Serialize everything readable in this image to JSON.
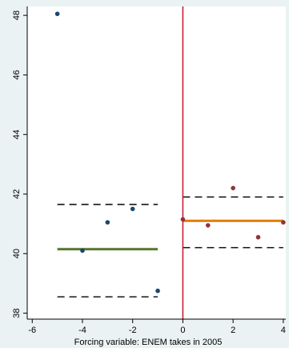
{
  "chart_data": {
    "type": "scatter",
    "title": "",
    "xlabel": "Forcing variable: ENEM takes in 2005",
    "ylabel": "",
    "xlim": [
      -6.2,
      4.1
    ],
    "ylim": [
      37.8,
      48.3
    ],
    "x_ticks": [
      -6,
      -4,
      -2,
      0,
      2,
      4
    ],
    "y_ticks": [
      38,
      40,
      42,
      44,
      46,
      48
    ],
    "grid": false,
    "legend": "none",
    "series": [
      {
        "color": "#1a476f",
        "points": [
          {
            "x": -5,
            "y": 48.05
          },
          {
            "x": -4,
            "y": 40.1
          },
          {
            "x": -3,
            "y": 41.05
          },
          {
            "x": -2,
            "y": 41.5
          },
          {
            "x": -1,
            "y": 38.75
          }
        ]
      },
      {
        "color": "#90353b",
        "points": [
          {
            "x": 0,
            "y": 41.15
          },
          {
            "x": 1,
            "y": 40.95
          },
          {
            "x": 2,
            "y": 42.2
          },
          {
            "x": 3,
            "y": 40.55
          },
          {
            "x": 4,
            "y": 41.05
          }
        ]
      }
    ],
    "fit_lines": [
      {
        "x_start": -5,
        "x_end": -1,
        "y": 40.15,
        "color": "#55752f"
      },
      {
        "x_start": 0,
        "x_end": 4,
        "y": 41.1,
        "color": "#e37e00"
      }
    ],
    "ci_lines": [
      {
        "x_start": -5,
        "x_end": -1,
        "y": 41.65
      },
      {
        "x_start": -5,
        "x_end": -1,
        "y": 38.55
      },
      {
        "x_start": 0,
        "x_end": 4,
        "y": 41.9
      },
      {
        "x_start": 0,
        "x_end": 4,
        "y": 40.2
      }
    ],
    "cutoff": {
      "x": 0,
      "color": "#c8102e"
    }
  }
}
